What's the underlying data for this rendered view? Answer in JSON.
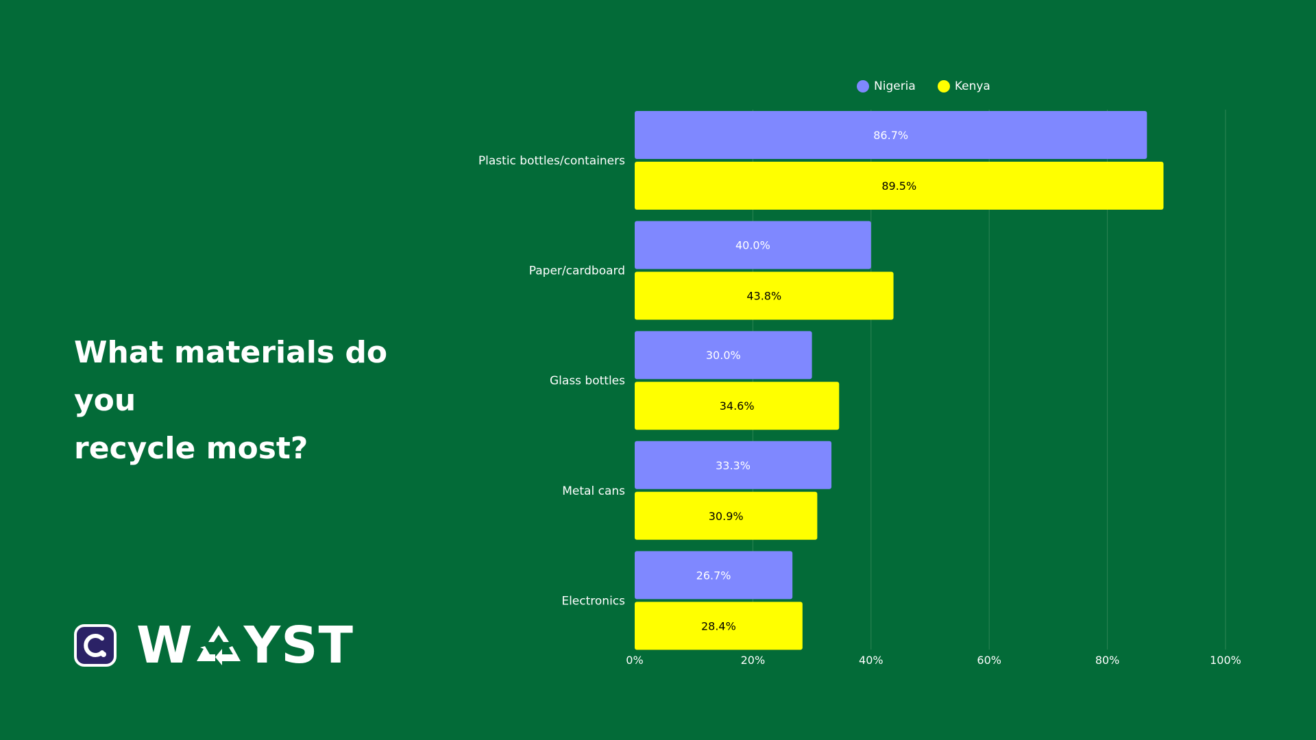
{
  "question": {
    "line1": "What materials do you",
    "line2": "recycle most?"
  },
  "brand": {
    "name_left": "W",
    "name_right": "YST",
    "icon": "recycle-icon"
  },
  "colors": {
    "background": "#036b38",
    "nigeria": "#7f88ff",
    "kenya": "#ffff00",
    "text": "#ffffff",
    "logo_bg": "#2b2266"
  },
  "chart_data": {
    "type": "bar",
    "orientation": "horizontal",
    "categories": [
      "Plastic bottles/containers",
      "Paper/cardboard",
      "Glass bottles",
      "Metal cans",
      "Electronics"
    ],
    "series": [
      {
        "name": "Nigeria",
        "values": [
          86.7,
          40.0,
          30.0,
          33.3,
          26.7
        ],
        "labels": [
          "86.7%",
          "40.0%",
          "30.0%",
          "33.3%",
          "26.7%"
        ]
      },
      {
        "name": "Kenya",
        "values": [
          89.5,
          43.8,
          34.6,
          30.9,
          28.4
        ],
        "labels": [
          "89.5%",
          "43.8%",
          "34.6%",
          "30.9%",
          "28.4%"
        ]
      }
    ],
    "xlim": [
      0,
      100
    ],
    "ticks": [
      "0%",
      "20%",
      "40%",
      "60%",
      "80%",
      "100%"
    ],
    "grid": true,
    "legend": "top"
  }
}
